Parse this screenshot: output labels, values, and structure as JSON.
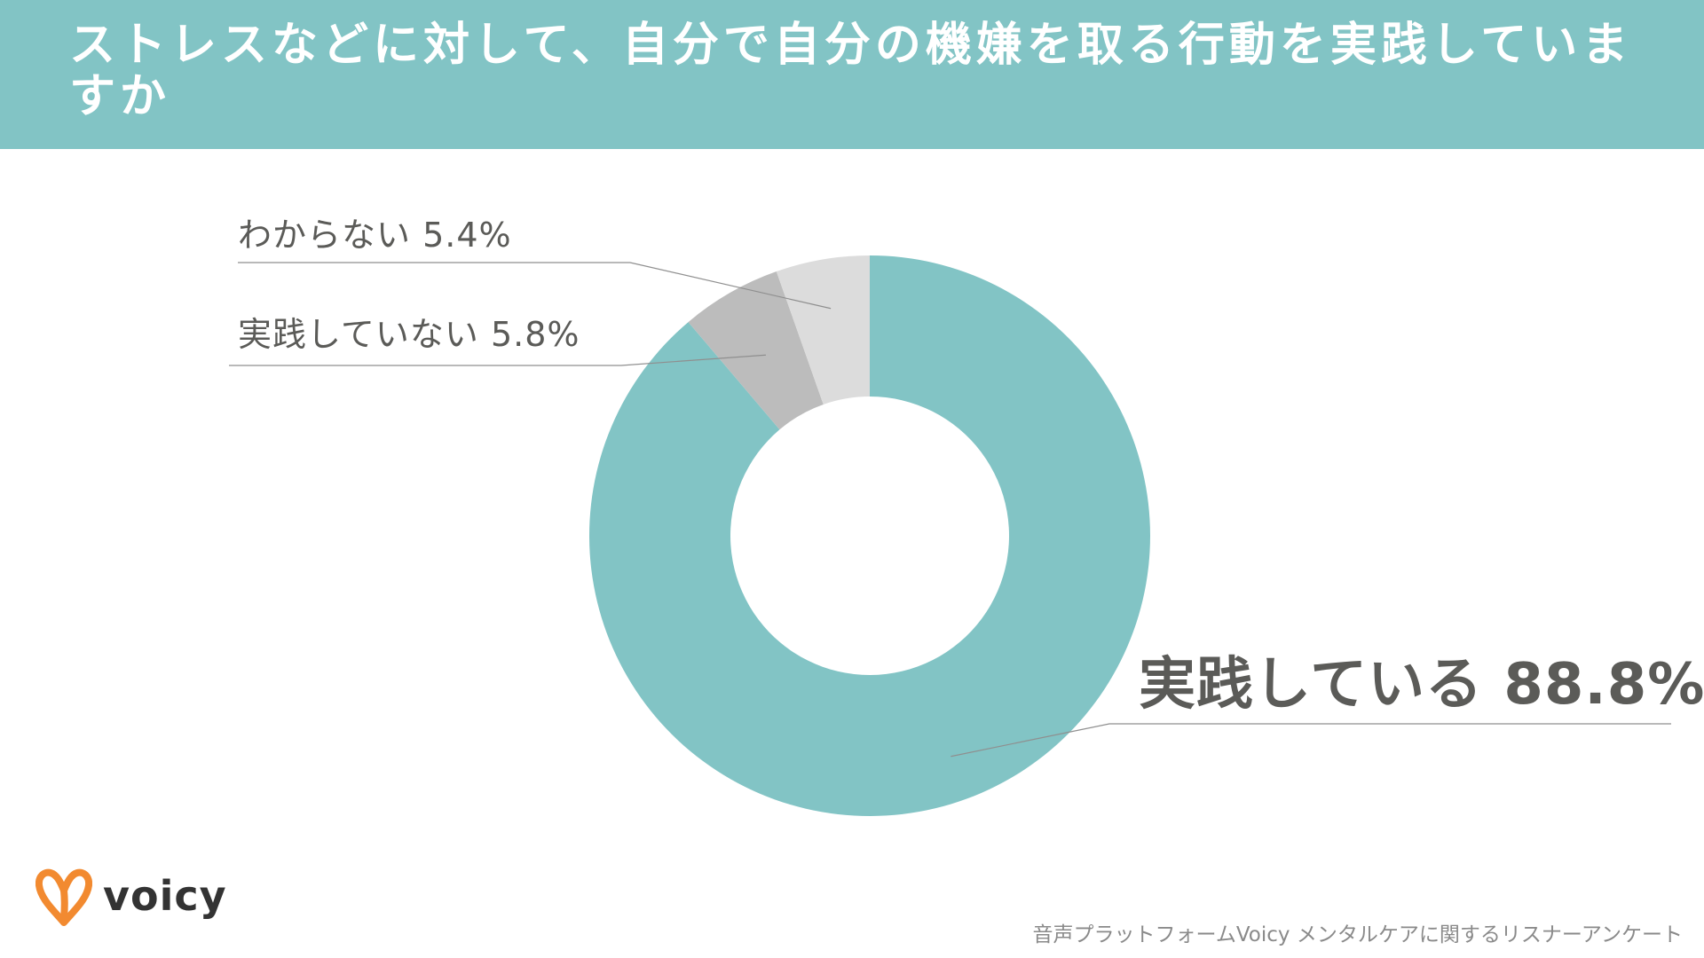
{
  "header": {
    "title": "ストレスなどに対して、自分で自分の機嫌を取る行動を実践していますか"
  },
  "chart_data": {
    "type": "pie",
    "title": "ストレスなどに対して、自分で自分の機嫌を取る行動を実践していますか",
    "categories": [
      "実践している",
      "実践していない",
      "わからない"
    ],
    "values": [
      88.8,
      5.8,
      5.4
    ],
    "unit": "%",
    "labels": [
      "実践している 88.8%",
      "実践していない 5.8%",
      "わからない 5.4%"
    ],
    "colors": [
      "#82c4c5",
      "#bcbcbc",
      "#dcdcdc"
    ],
    "style": "donut",
    "start_angle": "12 o'clock, clockwise",
    "legend": "callout labels"
  },
  "logo": {
    "text": "voicy",
    "icon": "voicy-v-heart-icon",
    "color": "#f28a30"
  },
  "source": "音声プラットフォームVoicy メンタルケアに関するリスナーアンケート"
}
